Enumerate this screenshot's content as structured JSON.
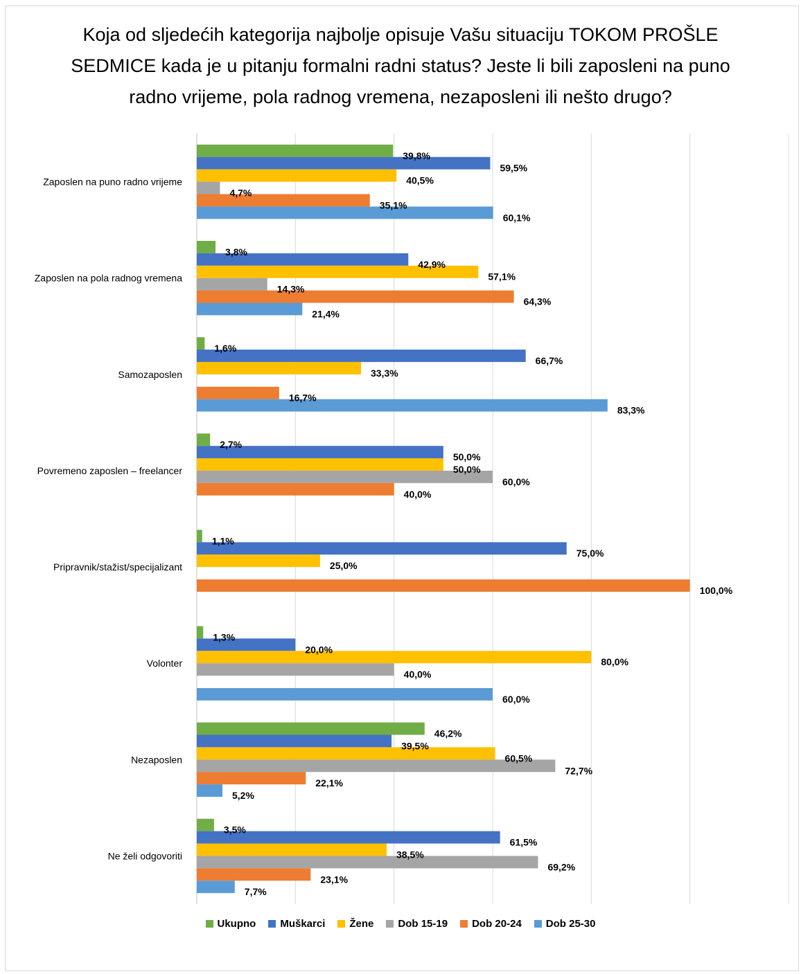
{
  "chart_data": {
    "type": "bar",
    "orientation": "horizontal",
    "title": "Koja od sljedećih kategorija najbolje opisuje Vašu situaciju TOKOM PROŠLE SEDMICE kada je u pitanju formalni radni status? Jeste li bili zaposleni na puno radno vrijeme, pola radnog vremena, nezaposleni ili nešto drugo?",
    "title_lines": [
      "Koja od sljedećih kategorija najbolje opisuje Vašu situaciju TOKOM PROŠLE",
      "SEDMICE kada je u pitanju formalni radni status? Jeste li bili zaposleni na puno",
      "radno vrijeme, pola radnog vremena, nezaposleni ili nešto drugo?"
    ],
    "categories": [
      "Zaposlen na puno radno vrijeme",
      "Zaposlen na pola radnog vremena",
      "Samozaposlen",
      "Povremeno zaposlen – freelancer",
      "Pripravnik/stažist/specijalizant",
      "Volonter",
      "Nezaposlen",
      "Ne želi odgovoriti"
    ],
    "series": [
      {
        "name": "Ukupno",
        "color": "#70ad47",
        "values": [
          39.8,
          3.8,
          1.6,
          2.7,
          1.1,
          1.3,
          46.2,
          3.5
        ],
        "labels": [
          "39,8%",
          "3,8%",
          "1,6%",
          "2,7%",
          "1,1%",
          "1,3%",
          "46,2%",
          "3,5%"
        ]
      },
      {
        "name": "Muškarci",
        "color": "#4472c4",
        "values": [
          59.5,
          42.9,
          66.7,
          50.0,
          75.0,
          20.0,
          39.5,
          61.5
        ],
        "labels": [
          "59,5%",
          "42,9%",
          "66,7%",
          "50,0%",
          "75,0%",
          "20,0%",
          "39,5%",
          "61,5%"
        ]
      },
      {
        "name": "Žene",
        "color": "#ffc000",
        "values": [
          40.5,
          57.1,
          33.3,
          50.0,
          25.0,
          80.0,
          60.5,
          38.5
        ],
        "labels": [
          "40,5%",
          "57,1%",
          "33,3%",
          "50,0%",
          "25,0%",
          "80,0%",
          "60,5%",
          "38,5%"
        ]
      },
      {
        "name": "Dob 15-19",
        "color": "#a5a5a5",
        "values": [
          4.7,
          14.3,
          null,
          60.0,
          null,
          40.0,
          72.7,
          69.2
        ],
        "labels": [
          "4,7%",
          "14,3%",
          "",
          "60,0%",
          "",
          "40,0%",
          "72,7%",
          "69,2%"
        ]
      },
      {
        "name": "Dob 20-24",
        "color": "#ed7d31",
        "values": [
          35.1,
          64.3,
          16.7,
          40.0,
          100.0,
          null,
          22.1,
          23.1
        ],
        "labels": [
          "35,1%",
          "64,3%",
          "16,7%",
          "40,0%",
          "100,0%",
          "",
          "22,1%",
          "23,1%"
        ]
      },
      {
        "name": "Dob 25-30",
        "color": "#5b9bd5",
        "values": [
          60.1,
          21.4,
          83.3,
          null,
          null,
          60.0,
          5.2,
          7.7
        ],
        "labels": [
          "60,1%",
          "21,4%",
          "83,3%",
          "",
          "",
          "60,0%",
          "5,2%",
          "7,7%"
        ]
      }
    ],
    "xlim": [
      0,
      120
    ],
    "x_gridlines": [
      0,
      20,
      40,
      60,
      80,
      100,
      120
    ],
    "grid": true,
    "legend_position": "bottom"
  }
}
